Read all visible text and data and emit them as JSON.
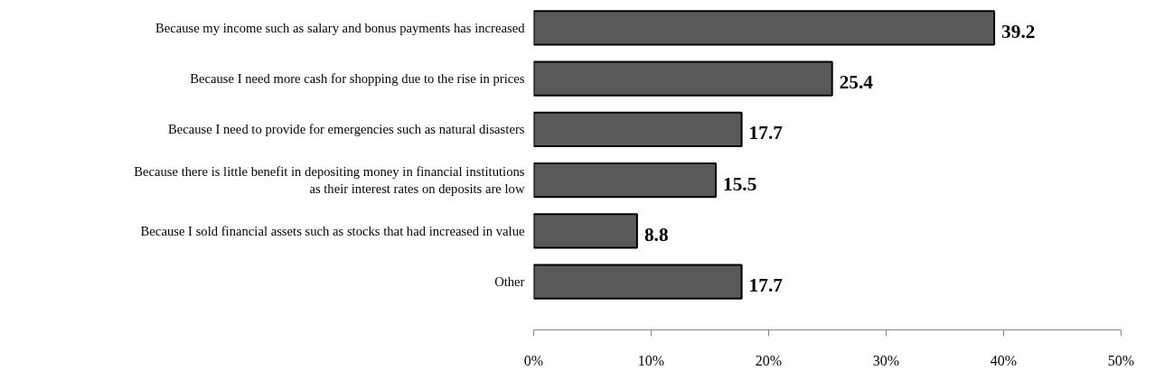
{
  "chart_data": {
    "type": "bar",
    "orientation": "horizontal",
    "categories": [
      "Because my income such as salary and bonus payments has increased",
      "Because I need more cash for shopping due to the rise in prices",
      "Because I need to provide for emergencies such as natural disasters",
      "Because there is little benefit in depositing money in financial institutions\nas their interest rates on deposits are low",
      "Because I sold financial assets such as stocks that had increased in value",
      "Other"
    ],
    "values": [
      39.2,
      25.4,
      17.7,
      15.5,
      8.8,
      17.7
    ],
    "color": "#595959",
    "data_labels": true,
    "grid": false,
    "xlim": [
      0,
      50
    ],
    "xticks": [
      {
        "value": 0,
        "label": "0%"
      },
      {
        "value": 10,
        "label": "10%"
      },
      {
        "value": 20,
        "label": "20%"
      },
      {
        "value": 30,
        "label": "30%"
      },
      {
        "value": 40,
        "label": "40%"
      },
      {
        "value": 50,
        "label": "50%"
      }
    ]
  }
}
